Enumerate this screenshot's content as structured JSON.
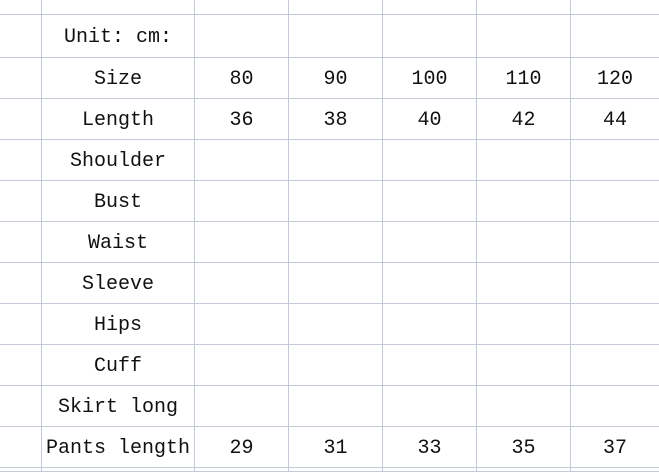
{
  "sheet": {
    "rows": [
      [
        "",
        "",
        "",
        "",
        "",
        "",
        ""
      ],
      [
        "",
        "Unit: cm:",
        "",
        "",
        "",
        "",
        ""
      ],
      [
        "",
        "Size",
        "80",
        "90",
        "100",
        "110",
        "120"
      ],
      [
        "",
        "Length",
        "36",
        "38",
        "40",
        "42",
        "44"
      ],
      [
        "",
        "Shoulder",
        "",
        "",
        "",
        "",
        ""
      ],
      [
        "",
        "Bust",
        "",
        "",
        "",
        "",
        ""
      ],
      [
        "",
        "Waist",
        "",
        "",
        "",
        "",
        ""
      ],
      [
        "",
        "Sleeve",
        "",
        "",
        "",
        "",
        ""
      ],
      [
        "",
        "Hips",
        "",
        "",
        "",
        "",
        ""
      ],
      [
        "",
        "Cuff",
        "",
        "",
        "",
        "",
        ""
      ],
      [
        "",
        "Skirt long",
        "",
        "",
        "",
        "",
        ""
      ],
      [
        "",
        "Pants length",
        "29",
        "31",
        "33",
        "35",
        "37"
      ],
      [
        "",
        "",
        "",
        "",
        "",
        "",
        ""
      ]
    ],
    "gridline_color": "#c5cad8"
  }
}
